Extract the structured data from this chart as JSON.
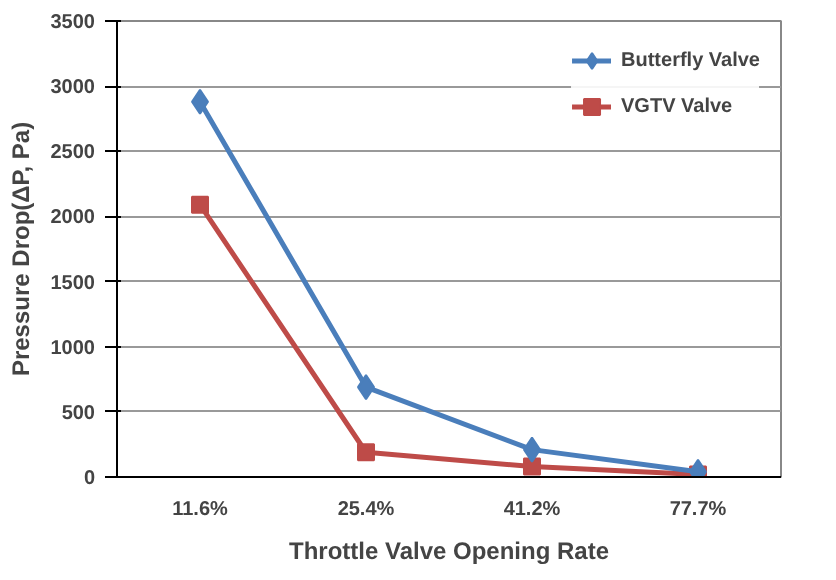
{
  "chart_data": {
    "type": "line",
    "xlabel": "Throttle Valve Opening Rate",
    "ylabel": "Pressure Drop(ΔP, Pa)",
    "categories": [
      "11.6%",
      "25.4%",
      "41.2%",
      "77.7%"
    ],
    "series": [
      {
        "name": "Butterfly Valve",
        "color": "#4a7ebb",
        "marker": "diamond",
        "values": [
          2880,
          690,
          210,
          40
        ]
      },
      {
        "name": "VGTV Valve",
        "color": "#be4b48",
        "marker": "square",
        "values": [
          2090,
          190,
          80,
          20
        ]
      }
    ],
    "ylim": [
      0,
      3500
    ],
    "yticks": [
      0,
      500,
      1000,
      1500,
      2000,
      2500,
      3000,
      3500
    ],
    "grid": "y",
    "legend": "top right",
    "line_style": "solid"
  }
}
